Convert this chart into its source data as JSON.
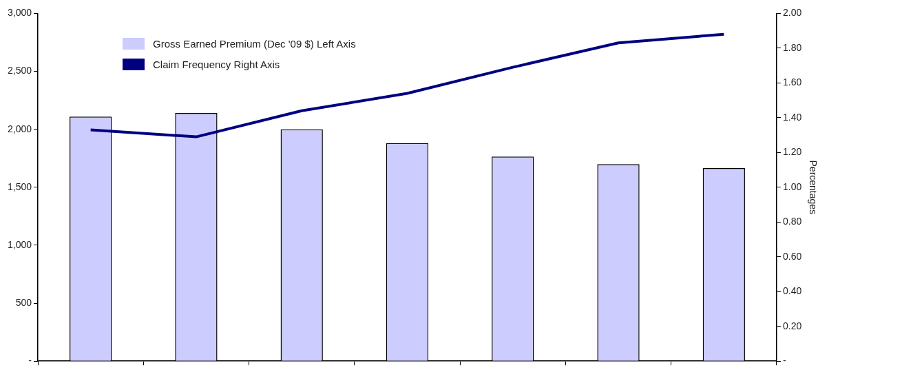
{
  "chart_data": {
    "type": "bar",
    "y2label": "Percentages",
    "categories": [
      null,
      null,
      null,
      null,
      null,
      null,
      null
    ],
    "series": [
      {
        "name": "Gross Earned Premium (Dec '09 $) Left Axis",
        "color": "#ccccff",
        "values": [
          2110,
          2140,
          2000,
          1880,
          1765,
          1700,
          1665
        ]
      },
      {
        "name": "Claim Frequency Right Axis",
        "type": "line",
        "axis": "y2",
        "color": "#000080",
        "values": [
          1.33,
          1.29,
          1.44,
          1.54,
          1.69,
          1.83,
          1.88
        ]
      }
    ],
    "ylim": [
      0,
      3000
    ],
    "yticks": [
      {
        "value": 0,
        "label": "-"
      },
      500,
      {
        "value": 1000,
        "label": "1,000"
      },
      {
        "value": 1500,
        "label": "1,500"
      },
      {
        "value": 2000,
        "label": "2,000"
      },
      {
        "value": 2500,
        "label": "2,500"
      },
      {
        "value": 3000,
        "label": "3,000"
      }
    ],
    "y2lim": [
      0,
      2
    ],
    "y2ticks": [
      {
        "value": 0,
        "label": "-"
      },
      {
        "value": 0.2,
        "label": "0.20"
      },
      {
        "value": 0.4,
        "label": "0.40"
      },
      {
        "value": 0.6,
        "label": "0.60"
      },
      {
        "value": 0.8,
        "label": "0.80"
      },
      {
        "value": 1,
        "label": "1.00"
      },
      {
        "value": 1.2,
        "label": "1.20"
      },
      {
        "value": 1.4,
        "label": "1.40"
      },
      {
        "value": 1.6,
        "label": "1.60"
      },
      {
        "value": 1.8,
        "label": "1.80"
      },
      {
        "value": 2,
        "label": "2.00"
      }
    ],
    "grid": false,
    "legend": "top left",
    "marker": "none"
  }
}
